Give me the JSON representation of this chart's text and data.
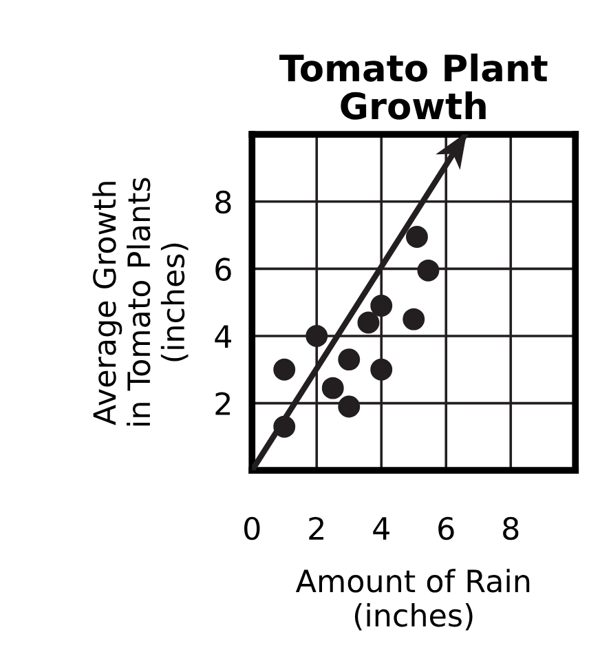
{
  "chart_data": {
    "type": "scatter",
    "title": "Tomato Plant\nGrowth",
    "xlabel": "Amount of Rain\n(inches)",
    "ylabel": "Average Growth\nin Tomato Plants\n(inches)",
    "series": [
      {
        "color": "#231f20",
        "marker": "circle",
        "x": [
          1.0,
          1.0,
          2.0,
          2.5,
          3.0,
          3.0,
          3.6,
          4.0,
          4.0,
          5.0,
          5.1,
          5.45
        ],
        "values": [
          1.3,
          3.0,
          4.0,
          2.45,
          3.3,
          1.9,
          4.4,
          4.9,
          3.0,
          4.5,
          6.95,
          5.95
        ]
      },
      {
        "type": "line",
        "color": "#231f20",
        "x": [
          0,
          6.6
        ],
        "values": [
          0,
          10
        ]
      }
    ],
    "xlim": [
      0,
      10
    ],
    "ylim": [
      0,
      10
    ],
    "xticks": [
      0,
      2,
      4,
      6,
      8
    ],
    "yticks": [
      2,
      4,
      6,
      8
    ],
    "grid": true,
    "legend": false
  }
}
